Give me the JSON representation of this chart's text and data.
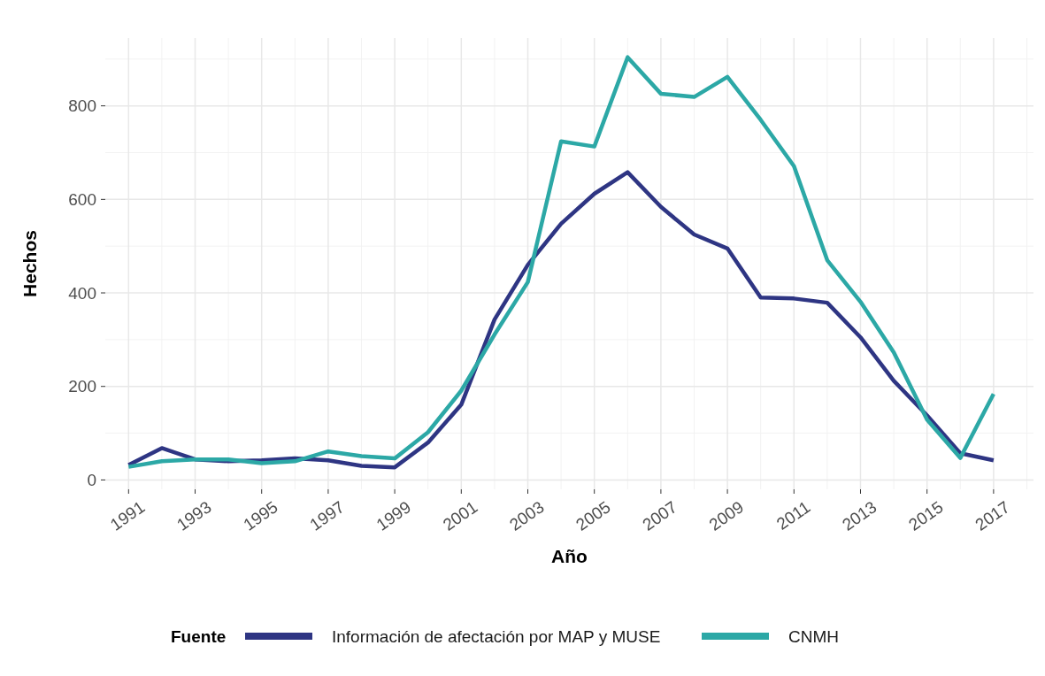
{
  "chart_data": {
    "type": "line",
    "xlabel": "Año",
    "ylabel": "Hechos",
    "legend_title": "Fuente",
    "legend": "bottom",
    "grid": true,
    "line_style": "solid",
    "x": [
      1991,
      1992,
      1993,
      1994,
      1995,
      1996,
      1997,
      1998,
      1999,
      2000,
      2001,
      2002,
      2003,
      2004,
      2005,
      2006,
      2007,
      2008,
      2009,
      2010,
      2011,
      2012,
      2013,
      2014,
      2015,
      2016,
      2017
    ],
    "xlim": [
      1990.3,
      2018.2
    ],
    "xticks": [
      1991,
      1993,
      1995,
      1997,
      1999,
      2001,
      2003,
      2005,
      2007,
      2009,
      2011,
      2013,
      2015,
      2017
    ],
    "ylim": [
      -20,
      945
    ],
    "yticks": [
      0,
      200,
      400,
      600,
      800
    ],
    "series": [
      {
        "name": "Información de afectación por MAP y MUSE",
        "color": "#2e3583",
        "values": [
          32,
          68,
          44,
          40,
          42,
          46,
          42,
          30,
          27,
          80,
          161,
          343,
          460,
          548,
          612,
          658,
          584,
          525,
          495,
          390,
          388,
          379,
          305,
          212,
          138,
          57,
          42
        ]
      },
      {
        "name": "CNMH",
        "color": "#2ca8a6",
        "values": [
          28,
          40,
          44,
          44,
          36,
          40,
          61,
          51,
          46,
          102,
          191,
          311,
          423,
          724,
          713,
          904,
          826,
          819,
          862,
          770,
          671,
          470,
          381,
          273,
          129,
          47,
          184
        ]
      }
    ]
  }
}
